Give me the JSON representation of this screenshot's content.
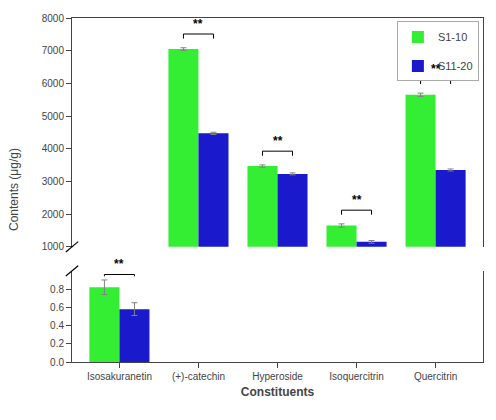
{
  "chart_data": [
    {
      "type": "bar",
      "categories": [
        "Isosakuranetin",
        "(+)-catechin",
        "Hyperoside",
        "Isoquercitrin",
        "Quercitrin"
      ],
      "series": [
        {
          "name": "S1-10",
          "color": "#33ee33",
          "values": [
            null,
            7050,
            3470,
            1650,
            5650
          ],
          "errors": [
            null,
            40,
            35,
            50,
            50
          ]
        },
        {
          "name": "S11-20",
          "color": "#1a1acc",
          "values": [
            null,
            4470,
            3230,
            1150,
            3350
          ],
          "errors": [
            null,
            35,
            30,
            40,
            30
          ]
        }
      ],
      "ylabel": "Contents (μg/g)",
      "ylim": [
        1000,
        8000
      ],
      "yticks": [
        1000,
        2000,
        3000,
        4000,
        5000,
        6000,
        7000,
        8000
      ],
      "grid": false,
      "legend": "upper right",
      "tick_labels": "y",
      "annotations": [
        {
          "x": "(+)-catechin",
          "text": "**"
        },
        {
          "x": "Hyperoside",
          "text": "**"
        },
        {
          "x": "Isoquercitrin",
          "text": "**"
        },
        {
          "x": "Quercitrin",
          "text": "**"
        }
      ]
    },
    {
      "type": "bar",
      "categories": [
        "Isosakuranetin",
        "(+)-catechin",
        "Hyperoside",
        "Isoquercitrin",
        "Quercitrin"
      ],
      "series": [
        {
          "name": "S1-10",
          "color": "#33ee33",
          "values": [
            0.82,
            null,
            null,
            null,
            null
          ],
          "errors": [
            0.08,
            null,
            null,
            null,
            null
          ]
        },
        {
          "name": "S11-20",
          "color": "#1a1acc",
          "values": [
            0.58,
            null,
            null,
            null,
            null
          ],
          "errors": [
            0.07,
            null,
            null,
            null,
            null
          ]
        }
      ],
      "xlabel": "Constituents",
      "ylim": [
        0.0,
        1.0
      ],
      "yticks": [
        {
          "value": 0.0,
          "label": "0.0"
        },
        0.2,
        0.4,
        0.6,
        0.8
      ],
      "grid": false,
      "annotations": [
        {
          "x": "Isosakuranetin",
          "text": "**"
        }
      ]
    }
  ]
}
